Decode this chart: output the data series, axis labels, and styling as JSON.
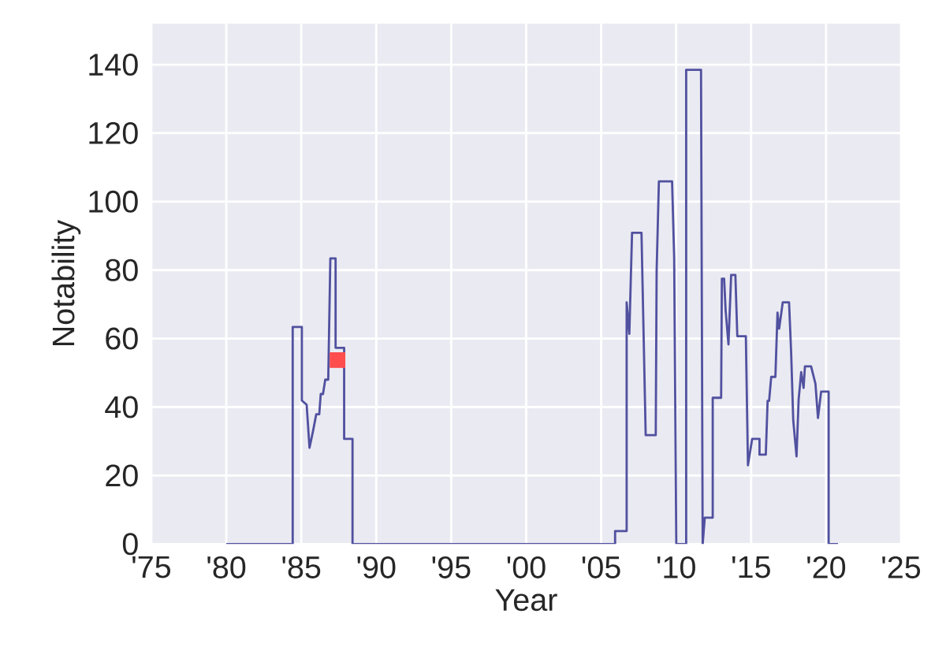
{
  "chart_data": {
    "type": "line",
    "xlabel": "Year",
    "ylabel": "Notability",
    "xlim": [
      1975,
      2025
    ],
    "ylim": [
      0,
      152
    ],
    "xticks": [
      {
        "value": 1975,
        "label": "'75"
      },
      {
        "value": 1980,
        "label": "'80"
      },
      {
        "value": 1985,
        "label": "'85"
      },
      {
        "value": 1990,
        "label": "'90"
      },
      {
        "value": 1995,
        "label": "'95"
      },
      {
        "value": 2000,
        "label": "'00"
      },
      {
        "value": 2005,
        "label": "'05"
      },
      {
        "value": 2010,
        "label": "'10"
      },
      {
        "value": 2015,
        "label": "'15"
      },
      {
        "value": 2020,
        "label": "'20"
      },
      {
        "value": 2025,
        "label": "'25"
      }
    ],
    "yticks": [
      0,
      20,
      40,
      60,
      80,
      100,
      120,
      140
    ],
    "grid": true,
    "series": [
      {
        "color": "#5151a0",
        "x": [
          1980,
          1984.43,
          1984.43,
          1985.04,
          1985.04,
          1985.36,
          1985.55,
          1985.8,
          1986.0,
          1986.2,
          1986.3,
          1986.45,
          1986.6,
          1986.8,
          1986.94,
          1987.29,
          1987.29,
          1987.86,
          1987.86,
          1988.42,
          1988.42,
          2005.93,
          2005.93,
          2006.7,
          2006.7,
          2006.88,
          2007.06,
          2007.69,
          2007.97,
          2008.64,
          2008.7,
          2008.85,
          2009.73,
          2009.87,
          2010.01,
          2010.67,
          2010.67,
          2011.66,
          2011.77,
          2011.91,
          2012.44,
          2012.44,
          2013.0,
          2013.05,
          2013.2,
          2013.3,
          2013.49,
          2013.67,
          2013.95,
          2014.08,
          2014.65,
          2014.79,
          2015.07,
          2015.56,
          2015.56,
          2015.98,
          2016.1,
          2016.2,
          2016.34,
          2016.62,
          2016.76,
          2016.87,
          2017.11,
          2017.53,
          2017.67,
          2017.81,
          2018.03,
          2018.17,
          2018.34,
          2018.5,
          2018.59,
          2019.0,
          2019.29,
          2019.46,
          2019.67,
          2020.17,
          2020.17,
          2020.8
        ],
        "values": [
          0,
          0,
          63.4,
          63.4,
          41.9,
          40.7,
          28.1,
          33.3,
          37.9,
          37.9,
          43.8,
          43.8,
          48,
          48,
          83.4,
          83.4,
          57.3,
          57.3,
          30.7,
          30.7,
          0,
          0,
          3.8,
          3.8,
          70.6,
          61.4,
          90.9,
          90.9,
          31.8,
          31.8,
          79.8,
          105.9,
          105.9,
          83.7,
          0,
          0,
          138.5,
          138.5,
          0,
          7.7,
          7.7,
          42.7,
          42.7,
          77.5,
          77.5,
          68.3,
          58.3,
          78.6,
          78.6,
          60.7,
          60.7,
          23,
          30.7,
          30.7,
          26.1,
          26.1,
          41.8,
          41.8,
          48.8,
          48.8,
          67.6,
          62.9,
          70.6,
          70.6,
          56,
          36.1,
          25.6,
          42.2,
          50.2,
          45.6,
          51.9,
          51.9,
          46.8,
          36.8,
          44.5,
          44.5,
          0,
          0
        ]
      },
      {
        "type": "scatter",
        "color": "#ff4c4c",
        "marker": "square",
        "x": [
          1987.42
        ],
        "values": [
          53.7
        ]
      }
    ]
  }
}
